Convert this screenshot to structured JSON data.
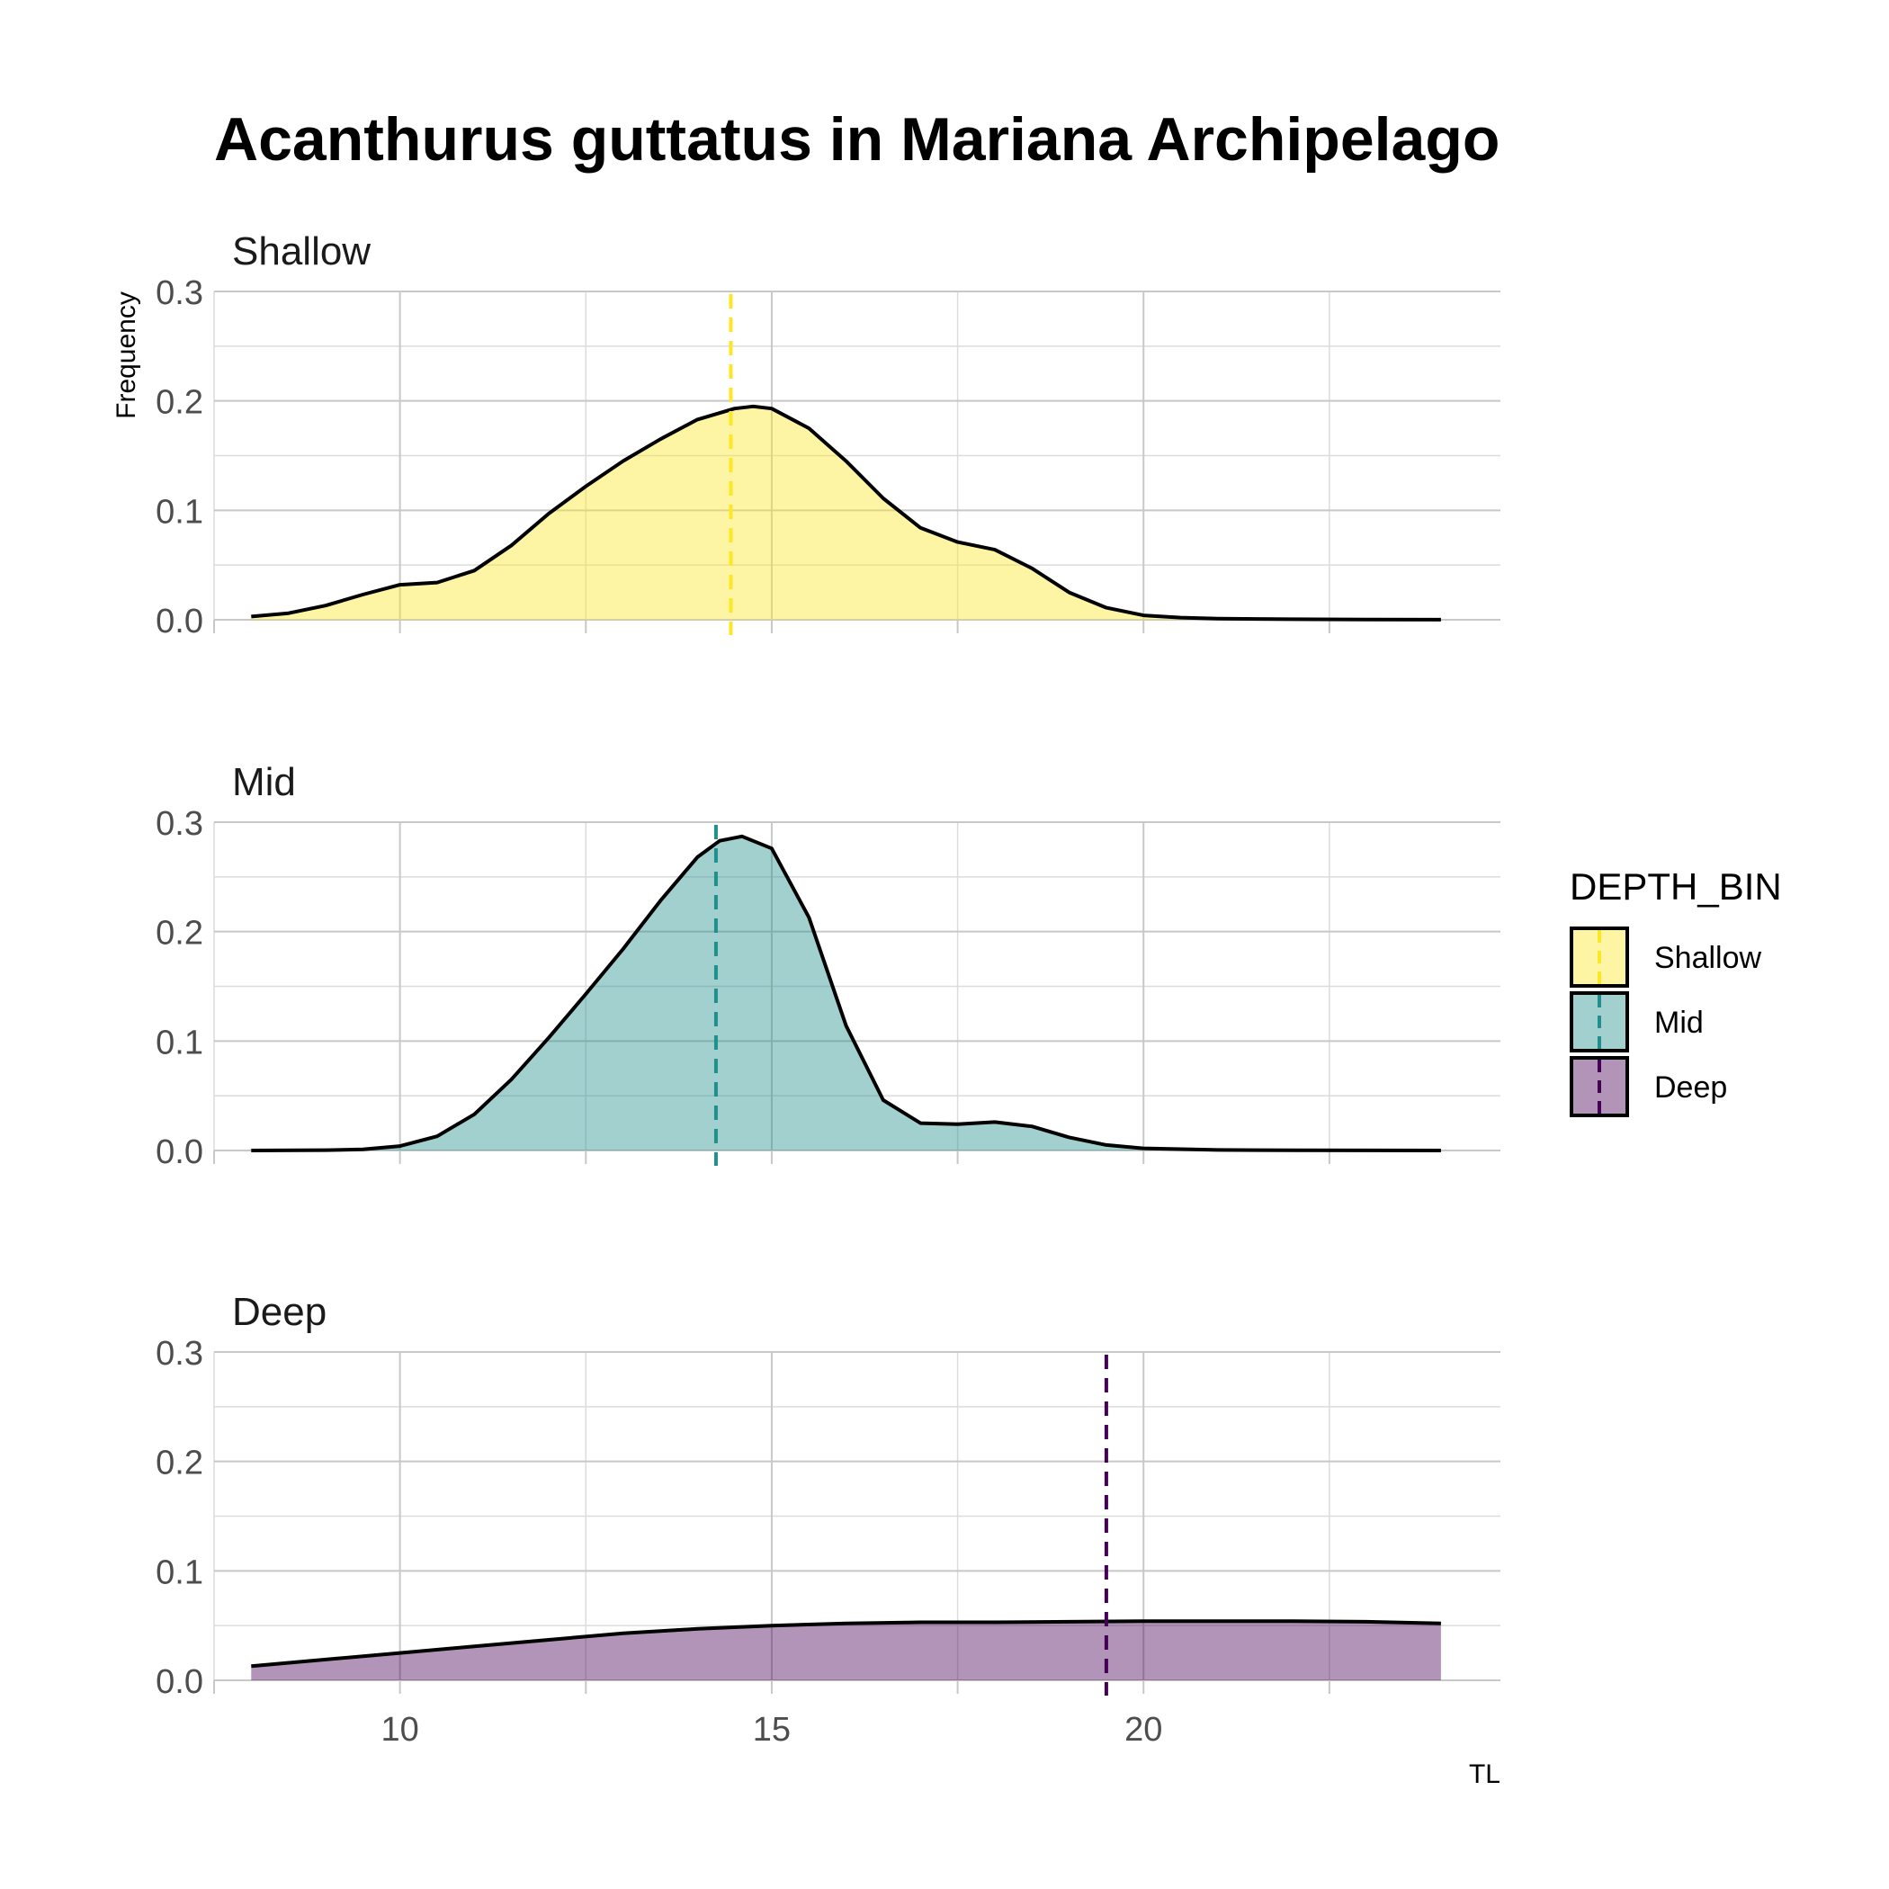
{
  "chart_data": {
    "type": "area",
    "title": "Acanthurus guttatus in Mariana Archipelago",
    "xlabel": "TL",
    "ylabel": "Frequency",
    "xlim": [
      7.5,
      24.8
    ],
    "ylim": [
      0,
      0.3
    ],
    "x_ticks": [
      "10",
      "15",
      "20"
    ],
    "y_ticks": [
      "0.0",
      "0.1",
      "0.2",
      "0.3"
    ],
    "grid": true,
    "legend": {
      "title": "DEPTH_BIN",
      "position": "right",
      "entries": [
        "Shallow",
        "Mid",
        "Deep"
      ]
    },
    "panels": [
      {
        "name": "Shallow",
        "fill": "#fde725",
        "mean_line_x": 14.45,
        "x": [
          8,
          8.5,
          9,
          9.5,
          10,
          10.5,
          11,
          11.5,
          12,
          12.5,
          13,
          13.5,
          14,
          14.5,
          14.75,
          15,
          15.5,
          16,
          16.5,
          17,
          17.5,
          18,
          18.5,
          19,
          19.5,
          20,
          20.5,
          21,
          22,
          23,
          24
        ],
        "y": [
          0.003,
          0.006,
          0.013,
          0.023,
          0.032,
          0.034,
          0.045,
          0.068,
          0.097,
          0.122,
          0.145,
          0.165,
          0.183,
          0.193,
          0.195,
          0.193,
          0.175,
          0.145,
          0.111,
          0.084,
          0.071,
          0.064,
          0.047,
          0.025,
          0.011,
          0.004,
          0.002,
          0.001,
          0.0005,
          0.0002,
          0.0001
        ]
      },
      {
        "name": "Mid",
        "fill": "#21908c",
        "mean_line_x": 14.25,
        "x": [
          8,
          9,
          9.5,
          10,
          10.5,
          11,
          11.5,
          12,
          12.5,
          13,
          13.5,
          14,
          14.3,
          14.6,
          15,
          15.5,
          16,
          16.5,
          17,
          17.5,
          18,
          18.5,
          19,
          19.5,
          20,
          21,
          22,
          23,
          24
        ],
        "y": [
          0,
          0.0003,
          0.001,
          0.004,
          0.013,
          0.033,
          0.065,
          0.103,
          0.143,
          0.184,
          0.228,
          0.268,
          0.283,
          0.287,
          0.276,
          0.213,
          0.114,
          0.046,
          0.025,
          0.024,
          0.026,
          0.022,
          0.012,
          0.005,
          0.002,
          0.0005,
          0.0002,
          0.0001,
          0
        ]
      },
      {
        "name": "Deep",
        "fill": "#440154",
        "mean_line_x": 19.5,
        "x": [
          8,
          9,
          10,
          11,
          12,
          13,
          14,
          15,
          16,
          17,
          18,
          19,
          20,
          21,
          22,
          23,
          24
        ],
        "y": [
          0.013,
          0.019,
          0.025,
          0.031,
          0.037,
          0.043,
          0.047,
          0.05,
          0.052,
          0.053,
          0.053,
          0.0535,
          0.054,
          0.054,
          0.054,
          0.0535,
          0.052
        ]
      }
    ]
  }
}
